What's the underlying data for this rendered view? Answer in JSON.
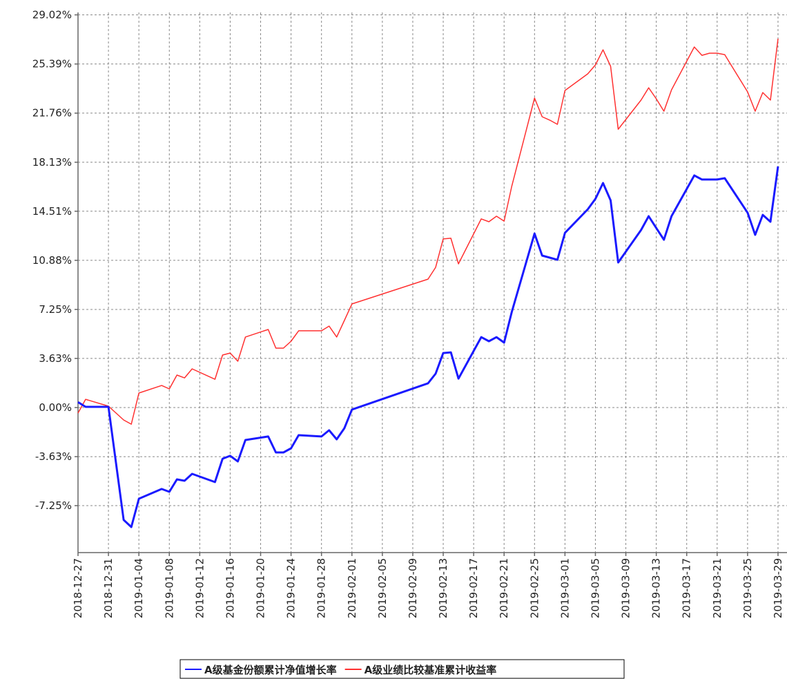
{
  "chart_data": {
    "type": "line",
    "x": [
      "2018-12-27",
      "2018-12-28",
      "2018-12-31",
      "2019-01-02",
      "2019-01-03",
      "2019-01-04",
      "2019-01-07",
      "2019-01-08",
      "2019-01-09",
      "2019-01-10",
      "2019-01-11",
      "2019-01-14",
      "2019-01-15",
      "2019-01-16",
      "2019-01-17",
      "2019-01-18",
      "2019-01-21",
      "2019-01-22",
      "2019-01-23",
      "2019-01-24",
      "2019-01-25",
      "2019-01-28",
      "2019-01-29",
      "2019-01-30",
      "2019-01-31",
      "2019-02-01",
      "2019-02-11",
      "2019-02-12",
      "2019-02-13",
      "2019-02-14",
      "2019-02-15",
      "2019-02-18",
      "2019-02-19",
      "2019-02-20",
      "2019-02-21",
      "2019-02-22",
      "2019-02-25",
      "2019-02-26",
      "2019-02-27",
      "2019-02-28",
      "2019-03-01",
      "2019-03-04",
      "2019-03-05",
      "2019-03-06",
      "2019-03-07",
      "2019-03-08",
      "2019-03-11",
      "2019-03-12",
      "2019-03-13",
      "2019-03-14",
      "2019-03-15",
      "2019-03-18",
      "2019-03-19",
      "2019-03-20",
      "2019-03-21",
      "2019-03-22",
      "2019-03-25",
      "2019-03-26",
      "2019-03-27",
      "2019-03-28",
      "2019-03-29"
    ],
    "series": [
      {
        "name": "A级基金份额累计净值增长率",
        "color": "#1a1aff",
        "width": 3,
        "values": [
          0.4,
          0.05,
          0.05,
          -8.3,
          -8.83,
          -6.74,
          -6.02,
          -6.23,
          -5.31,
          -5.41,
          -4.9,
          -5.51,
          -3.78,
          -3.57,
          -3.98,
          -2.4,
          -2.14,
          -3.32,
          -3.32,
          -3.01,
          -2.04,
          -2.14,
          -1.68,
          -2.35,
          -1.53,
          -0.15,
          1.79,
          2.5,
          4.03,
          4.08,
          2.14,
          5.2,
          4.9,
          5.2,
          4.8,
          7.04,
          12.86,
          11.23,
          11.08,
          10.92,
          12.91,
          14.65,
          15.42,
          16.59,
          15.31,
          10.72,
          13.12,
          14.14,
          13.27,
          12.4,
          14.14,
          17.15,
          16.85,
          16.85,
          16.85,
          16.95,
          14.4,
          12.76,
          14.24,
          13.73,
          17.82
        ]
      },
      {
        "name": "A级业绩比较基准累计收益率",
        "color": "#ff3030",
        "width": 1.5,
        "values": [
          -0.41,
          0.61,
          0.1,
          -0.92,
          -1.23,
          1.07,
          1.63,
          1.38,
          2.4,
          2.19,
          2.86,
          2.09,
          3.88,
          4.03,
          3.42,
          5.21,
          5.77,
          4.39,
          4.39,
          4.9,
          5.67,
          5.67,
          6.02,
          5.21,
          6.43,
          7.66,
          9.49,
          10.36,
          12.46,
          12.51,
          10.62,
          13.94,
          13.73,
          14.14,
          13.78,
          16.33,
          22.87,
          21.49,
          21.24,
          20.93,
          23.43,
          24.66,
          25.32,
          26.44,
          25.22,
          20.57,
          22.72,
          23.63,
          22.82,
          21.9,
          23.48,
          26.65,
          26.03,
          26.19,
          26.19,
          26.08,
          23.33,
          21.9,
          23.28,
          22.72,
          27.26
        ]
      }
    ],
    "xlim": [
      "2018-12-27",
      "2019-03-30"
    ],
    "xticks": [
      "2018-12-27",
      "2018-12-31",
      "2019-01-04",
      "2019-01-08",
      "2019-01-12",
      "2019-01-16",
      "2019-01-20",
      "2019-01-24",
      "2019-01-28",
      "2019-02-01",
      "2019-02-05",
      "2019-02-09",
      "2019-02-13",
      "2019-02-17",
      "2019-02-21",
      "2019-02-25",
      "2019-03-01",
      "2019-03-05",
      "2019-03-09",
      "2019-03-13",
      "2019-03-17",
      "2019-03-21",
      "2019-03-25",
      "2019-03-29"
    ],
    "ylim": [
      -10.72,
      29.2
    ],
    "yticks": [
      {
        "value": 29.02,
        "label": "29.02%"
      },
      {
        "value": 25.39,
        "label": "25.39%"
      },
      {
        "value": 21.76,
        "label": "21.76%"
      },
      {
        "value": 18.13,
        "label": "18.13%"
      },
      {
        "value": 14.51,
        "label": "14.51%"
      },
      {
        "value": 10.88,
        "label": "10.88%"
      },
      {
        "value": 7.25,
        "label": "7.25%"
      },
      {
        "value": 3.63,
        "label": "3.63%"
      },
      {
        "value": 0,
        "label": "0.00%"
      },
      {
        "value": -3.63,
        "label": "-3.63%"
      },
      {
        "value": -7.25,
        "label": "-7.25%"
      }
    ],
    "grid": true
  }
}
